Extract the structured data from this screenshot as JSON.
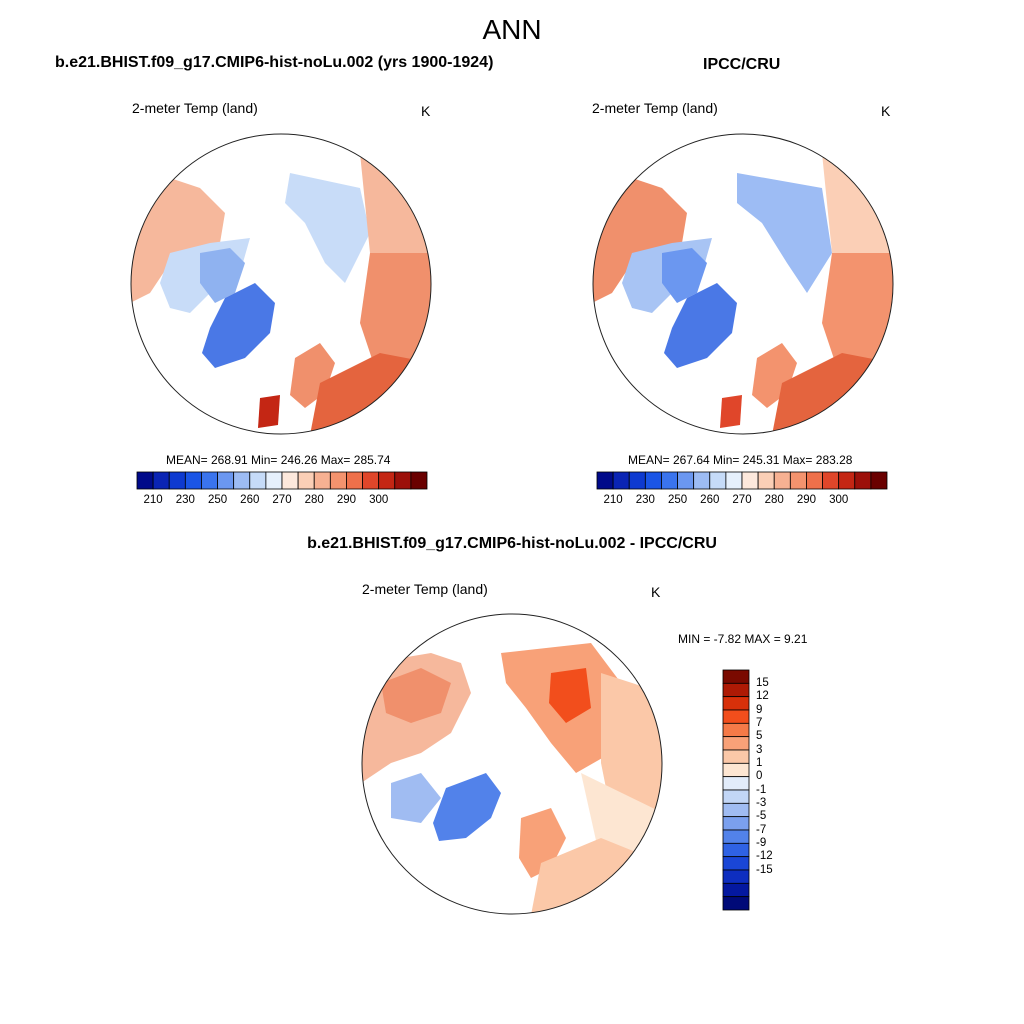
{
  "main_title": "ANN",
  "panels": [
    {
      "case_title": "b.e21.BHIST.f09_g17.CMIP6-hist-noLu.002 (yrs 1900-1924)",
      "variable_label": "2-meter Temp (land)",
      "unit_label": "K",
      "stats_text": "MEAN= 268.91  Min= 246.26  Max= 285.74",
      "colorbar": {
        "colors": [
          "#000a8a",
          "#0a24b4",
          "#0e3ad0",
          "#1a55e6",
          "#3a74ee",
          "#6b97f0",
          "#9dbcf4",
          "#c6dbf8",
          "#e6f0fc",
          "#fde8dc",
          "#fbcfb6",
          "#f7b192",
          "#f3936e",
          "#ee704a",
          "#e0462a",
          "#c42614",
          "#9c100a",
          "#6a0000"
        ],
        "tick_labels": [
          "210",
          "230",
          "250",
          "260",
          "270",
          "280",
          "290",
          "300"
        ]
      }
    },
    {
      "case_title": "IPCC/CRU",
      "variable_label": "2-meter Temp (land)",
      "unit_label": "K",
      "stats_text": "MEAN= 267.64  Min= 245.31  Max= 283.28",
      "colorbar": {
        "colors": [
          "#000a8a",
          "#0a24b4",
          "#0e3ad0",
          "#1a55e6",
          "#3a74ee",
          "#6b97f0",
          "#9dbcf4",
          "#c6dbf8",
          "#e6f0fc",
          "#fde8dc",
          "#fbcfb6",
          "#f7b192",
          "#f3936e",
          "#ee704a",
          "#e0462a",
          "#c42614",
          "#9c100a",
          "#6a0000"
        ],
        "tick_labels": [
          "210",
          "230",
          "250",
          "260",
          "270",
          "280",
          "290",
          "300"
        ]
      }
    }
  ],
  "difference_panel": {
    "case_title": "b.e21.BHIST.f09_g17.CMIP6-hist-noLu.002 - IPCC/CRU",
    "variable_label": "2-meter Temp (land)",
    "unit_label": "K",
    "stats_text": "MIN =  -7.82 MAX =   9.21",
    "colorbar": {
      "colors": [
        "#7a0a00",
        "#ae1a05",
        "#d8300a",
        "#f24e1c",
        "#f57a48",
        "#f8a178",
        "#fbc8a8",
        "#fde6d2",
        "#e2ecfa",
        "#c2d6f6",
        "#a0bcf2",
        "#7ba0ee",
        "#5282ea",
        "#2f62e4",
        "#1a46d6",
        "#0e2ec0",
        "#0418a0",
        "#000a78"
      ],
      "tick_labels": [
        "15",
        "12",
        "9",
        "7",
        "5",
        "3",
        "1",
        "0",
        "-1",
        "-3",
        "-5",
        "-7",
        "-9",
        "-12",
        "-15"
      ]
    }
  },
  "map_colors": {
    "warm_light": "#f6b89c",
    "warm_mid": "#f0906c",
    "warm_dark": "#e4643e",
    "cool_light": "#c8dcf8",
    "cool_mid": "#8fb2f0",
    "cool_dark": "#4a78e6",
    "uk_red": "#c42614"
  }
}
